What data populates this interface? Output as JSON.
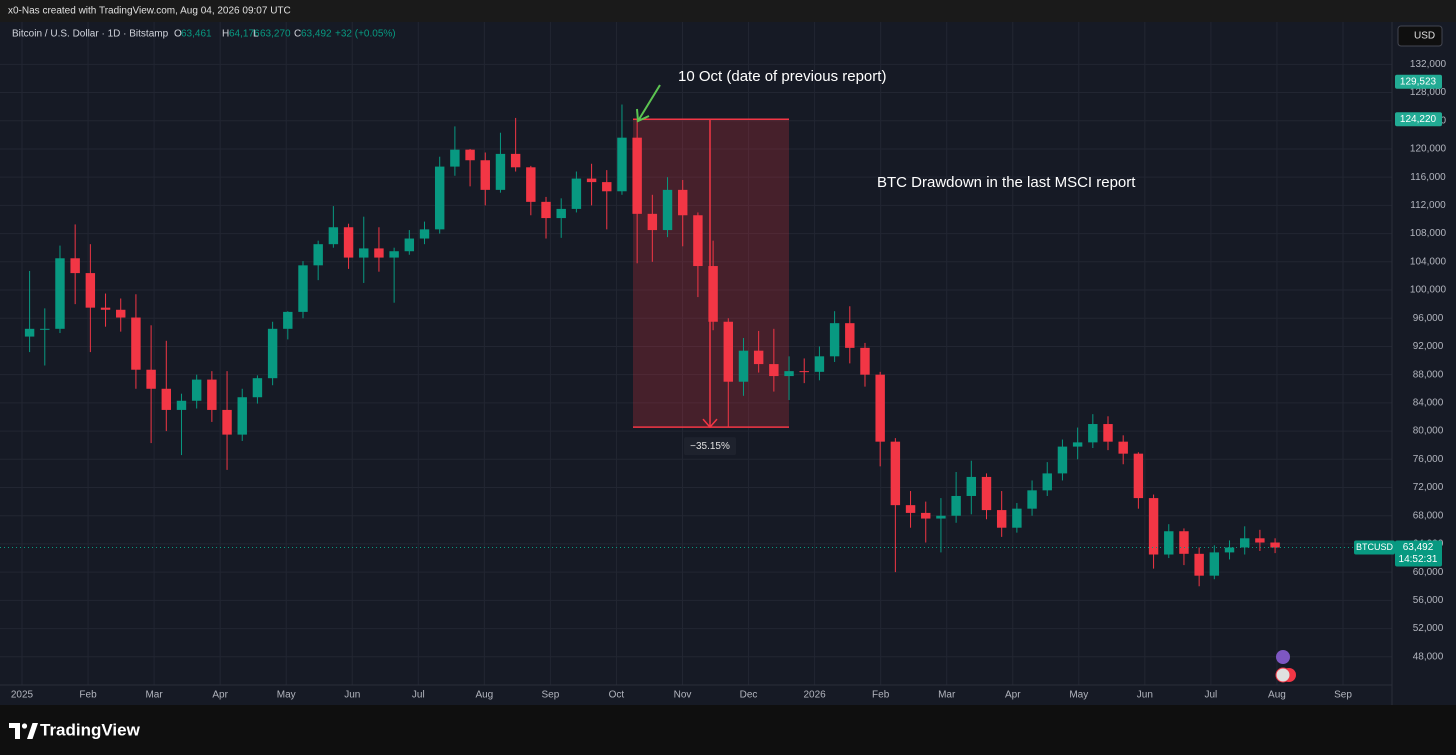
{
  "header": {
    "attribution": "x0-Nas created with TradingView.com, Aug 04, 2026 09:07 UTC",
    "currency": "USD"
  },
  "footer": {
    "brand": "TradingView"
  },
  "chart_data": {
    "type": "candlestick",
    "symbol": "Bitcoin / U.S. Dollar · 1D · Bitstamp",
    "ohlc_legend": [
      {
        "key": "O",
        "value": "63,461"
      },
      {
        "key": "H",
        "value": "64,176"
      },
      {
        "key": "L",
        "value": "63,270"
      },
      {
        "key": "C",
        "value": "63,492"
      }
    ],
    "change": "+32 (+0.05%)",
    "categories": [
      "2025",
      "Feb",
      "Mar",
      "Apr",
      "May",
      "Jun",
      "Jul",
      "Aug",
      "Sep",
      "Oct",
      "Nov",
      "Dec",
      "2026",
      "Feb",
      "Mar",
      "Apr",
      "May",
      "Jun",
      "Jul",
      "Aug",
      "Sep"
    ],
    "up_color": "#089981",
    "down_color": "#f23645",
    "series": [
      {
        "name": "BTCUSD",
        "open": [
          93400,
          94500,
          94500,
          104500,
          102400,
          97500,
          97200,
          96100,
          88700,
          86000,
          83000,
          84300,
          87300,
          83000,
          79500,
          84800,
          87500,
          94500,
          96900,
          103500,
          106500,
          108900,
          104600,
          105900,
          104600,
          105500,
          107300,
          108600,
          117500,
          119900,
          118400,
          114200,
          119300,
          117400,
          112500,
          110200,
          111500,
          115800,
          115300,
          114000,
          121600,
          110800,
          108500,
          114200,
          110600,
          103400,
          95500,
          87000,
          91400,
          89500,
          87800,
          88500,
          88400,
          90600,
          95300,
          91800,
          88000,
          78500,
          69500,
          68400,
          67600,
          68000,
          70800,
          73500,
          68800,
          66300,
          69000,
          71600,
          74000,
          77800,
          78400,
          81000,
          78500,
          76800,
          70500,
          62500,
          65800,
          62600,
          59500,
          62800,
          63500,
          64800,
          64200
        ],
        "high": [
          102700,
          97400,
          106300,
          109300,
          106500,
          99500,
          98800,
          99400,
          95000,
          92800,
          85300,
          88000,
          88500,
          88500,
          86000,
          87900,
          95500,
          97000,
          104100,
          107000,
          111900,
          109400,
          110400,
          108900,
          106000,
          108500,
          109700,
          118900,
          123200,
          120000,
          119500,
          122300,
          124400,
          117600,
          113200,
          113000,
          116800,
          117900,
          117000,
          126300,
          124200,
          113500,
          116000,
          115600,
          111000,
          107000,
          96000,
          93200,
          94200,
          94500,
          90600,
          90300,
          92000,
          97000,
          97700,
          92500,
          88400,
          79000,
          71500,
          70000,
          70500,
          74200,
          75800,
          74000,
          71500,
          69800,
          73000,
          75600,
          78800,
          80500,
          82400,
          82100,
          79400,
          77000,
          71000,
          66800,
          66200,
          63500,
          63800,
          64500,
          66500,
          66000,
          64800
        ],
        "low": [
          91200,
          89300,
          93900,
          98000,
          91200,
          94800,
          94100,
          86000,
          78300,
          80000,
          76600,
          83200,
          81300,
          74500,
          78600,
          83900,
          86500,
          93000,
          96000,
          101400,
          106000,
          103000,
          101000,
          102600,
          98200,
          105000,
          106500,
          108000,
          116200,
          114700,
          112000,
          113800,
          116800,
          110600,
          107300,
          107400,
          111000,
          112000,
          108600,
          113500,
          103800,
          104000,
          107500,
          106200,
          99000,
          94300,
          80600,
          85000,
          88300,
          85600,
          84400,
          86800,
          87200,
          89800,
          89600,
          86300,
          75000,
          60000,
          66300,
          64200,
          62800,
          67000,
          68200,
          67500,
          65000,
          65600,
          68000,
          70800,
          73000,
          76000,
          77600,
          77300,
          75300,
          69000,
          60500,
          62000,
          61000,
          58000,
          59000,
          61800,
          62500,
          63000,
          62700
        ],
        "close": [
          94500,
          94500,
          104500,
          102400,
          97500,
          97200,
          96100,
          88700,
          86000,
          83000,
          84300,
          87300,
          83000,
          79500,
          84800,
          87500,
          94500,
          96900,
          103500,
          106500,
          108900,
          104600,
          105900,
          104600,
          105500,
          107300,
          108600,
          117500,
          119900,
          118400,
          114200,
          119300,
          117400,
          112500,
          110200,
          111500,
          115800,
          115300,
          114000,
          121600,
          110800,
          108500,
          114200,
          110600,
          103400,
          95500,
          87000,
          91400,
          89500,
          87800,
          88500,
          88400,
          90600,
          95300,
          91800,
          88000,
          78500,
          69500,
          68400,
          67600,
          68000,
          70800,
          73500,
          68800,
          66300,
          69000,
          71600,
          74000,
          77800,
          78400,
          81000,
          78500,
          76800,
          70500,
          62500,
          65800,
          62600,
          59500,
          62800,
          63500,
          64800,
          64200,
          63492
        ]
      }
    ],
    "ylim": [
      44000,
      138000
    ],
    "yticks": [
      {
        "value": 48000,
        "label": "48,000"
      },
      {
        "value": 52000,
        "label": "52,000"
      },
      {
        "value": 56000,
        "label": "56,000"
      },
      {
        "value": 60000,
        "label": "60,000"
      },
      {
        "value": 64000,
        "label": "64,000"
      },
      {
        "value": 68000,
        "label": "68,000"
      },
      {
        "value": 72000,
        "label": "72,000"
      },
      {
        "value": 76000,
        "label": "76,000"
      },
      {
        "value": 80000,
        "label": "80,000"
      },
      {
        "value": 84000,
        "label": "84,000"
      },
      {
        "value": 88000,
        "label": "88,000"
      },
      {
        "value": 92000,
        "label": "92,000"
      },
      {
        "value": 96000,
        "label": "96,000"
      },
      {
        "value": 100000,
        "label": "100,000"
      },
      {
        "value": 104000,
        "label": "104,000"
      },
      {
        "value": 108000,
        "label": "108,000"
      },
      {
        "value": 112000,
        "label": "112,000"
      },
      {
        "value": 116000,
        "label": "116,000"
      },
      {
        "value": 120000,
        "label": "120,000"
      },
      {
        "value": 124000,
        "label": "124,000"
      },
      {
        "value": 128000,
        "label": "128,000"
      },
      {
        "value": 132000,
        "label": "132,000"
      }
    ],
    "grid": true,
    "price_labels": [
      {
        "value": 129523,
        "label": "129,523"
      },
      {
        "value": 124220,
        "label": "124,220"
      }
    ],
    "last_price": {
      "symbol": "BTCUSD",
      "value": 63492,
      "label": "63,492",
      "countdown": "14:52:31"
    },
    "measure": {
      "from": 124220,
      "to": 80557,
      "label": "−35.15%",
      "color": "#f23645"
    },
    "annotations": [
      "10 Oct (date of previous report)",
      "BTC Drawdown in the last MSCI report"
    ]
  }
}
